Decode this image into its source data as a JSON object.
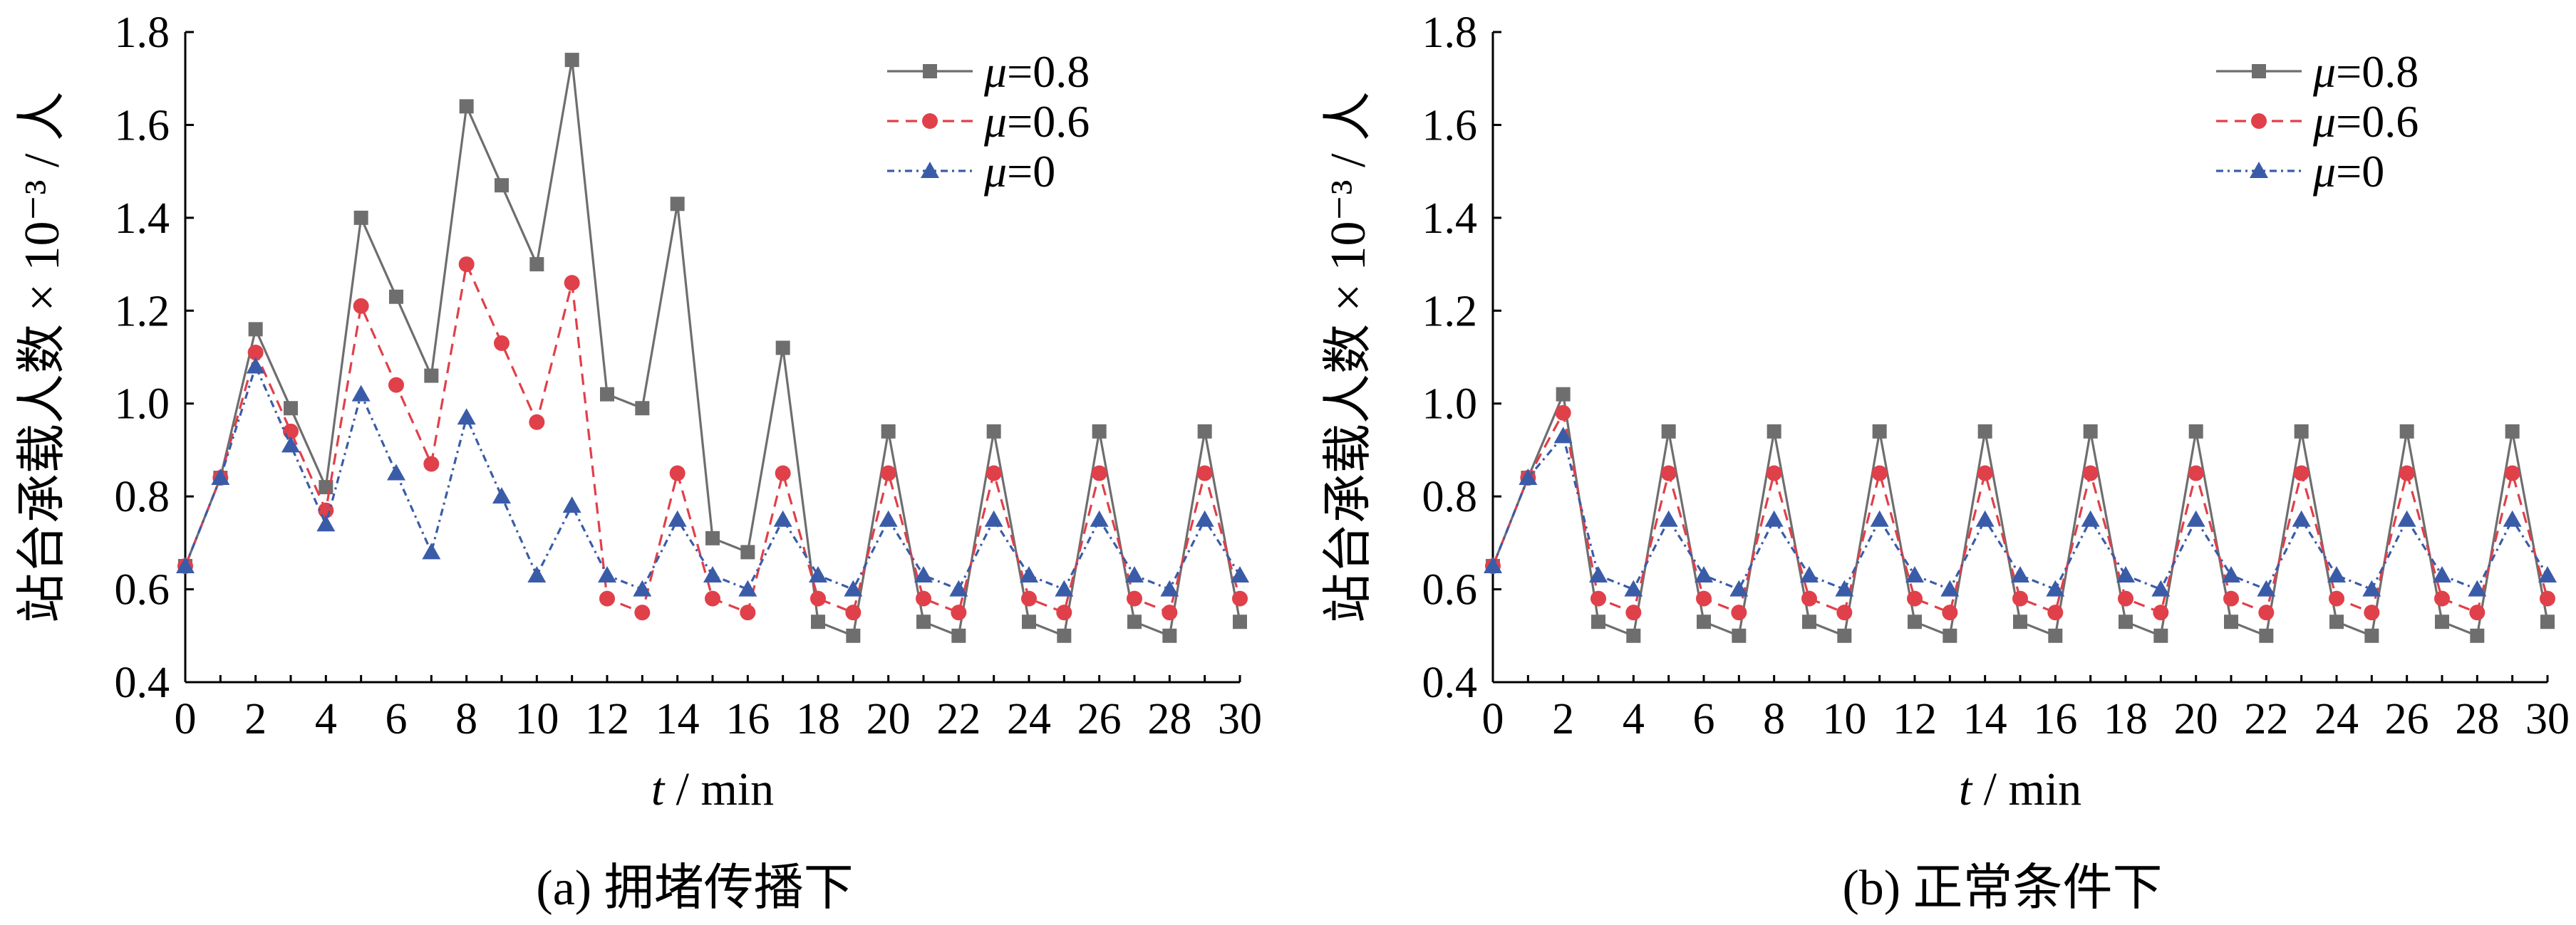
{
  "chart_data": [
    {
      "type": "line",
      "caption": "(a)  拥堵传播下",
      "xlabel_var": "t",
      "xlabel_unit": " / min",
      "ylabel": "站台承载人数 × 10⁻³ / 人",
      "xlim": [
        0,
        30
      ],
      "ylim": [
        0.4,
        1.8
      ],
      "x_ticks": [
        0,
        2,
        4,
        6,
        8,
        10,
        12,
        14,
        16,
        18,
        20,
        22,
        24,
        26,
        28,
        30
      ],
      "y_ticks": [
        "0.4",
        "0.6",
        "0.8",
        "1.0",
        "1.2",
        "1.4",
        "1.6",
        "1.8"
      ],
      "legend_position": "top-right",
      "grid": false,
      "x": [
        0,
        1,
        2,
        3,
        4,
        5,
        6,
        7,
        8,
        9,
        10,
        11,
        12,
        13,
        14,
        15,
        16,
        17,
        18,
        19,
        20,
        21,
        22,
        23,
        24,
        25,
        26,
        27,
        28,
        29,
        30
      ],
      "series": [
        {
          "name_var": "μ",
          "name_val": "=0.8",
          "color": "#6e6e6e",
          "marker": "square",
          "dash": "solid",
          "values": [
            0.65,
            0.84,
            1.16,
            0.99,
            0.82,
            1.4,
            1.23,
            1.06,
            1.64,
            1.47,
            1.3,
            1.74,
            1.02,
            0.99,
            1.43,
            0.71,
            0.68,
            1.12,
            0.53,
            0.5,
            0.94,
            0.53,
            0.5,
            0.94,
            0.53,
            0.5,
            0.94,
            0.53,
            0.5,
            0.94,
            0.53
          ]
        },
        {
          "name_var": "μ",
          "name_val": "=0.6",
          "color": "#e0404a",
          "marker": "circle",
          "dash": "dashed",
          "values": [
            0.65,
            0.84,
            1.11,
            0.94,
            0.77,
            1.21,
            1.04,
            0.87,
            1.3,
            1.13,
            0.96,
            1.26,
            0.58,
            0.55,
            0.85,
            0.58,
            0.55,
            0.85,
            0.58,
            0.55,
            0.85,
            0.58,
            0.55,
            0.85,
            0.58,
            0.55,
            0.85,
            0.58,
            0.55,
            0.85,
            0.58
          ]
        },
        {
          "name_var": "μ",
          "name_val": "=0",
          "color": "#3a5ca8",
          "marker": "triangle",
          "dash": "dashdot",
          "values": [
            0.65,
            0.84,
            1.08,
            0.91,
            0.74,
            1.02,
            0.85,
            0.68,
            0.97,
            0.8,
            0.63,
            0.78,
            0.63,
            0.6,
            0.75,
            0.63,
            0.6,
            0.75,
            0.63,
            0.6,
            0.75,
            0.63,
            0.6,
            0.75,
            0.63,
            0.6,
            0.75,
            0.63,
            0.6,
            0.75,
            0.63
          ]
        }
      ]
    },
    {
      "type": "line",
      "caption": "(b)  正常条件下",
      "xlabel_var": "t",
      "xlabel_unit": " / min",
      "ylabel": "站台承载人数 × 10⁻³ / 人",
      "xlim": [
        0,
        30
      ],
      "ylim": [
        0.4,
        1.8
      ],
      "x_ticks": [
        0,
        2,
        4,
        6,
        8,
        10,
        12,
        14,
        16,
        18,
        20,
        22,
        24,
        26,
        28,
        30
      ],
      "y_ticks": [
        "0.4",
        "0.6",
        "0.8",
        "1.0",
        "1.2",
        "1.4",
        "1.6",
        "1.8"
      ],
      "legend_position": "top-right",
      "grid": false,
      "x": [
        0,
        1,
        2,
        3,
        4,
        5,
        6,
        7,
        8,
        9,
        10,
        11,
        12,
        13,
        14,
        15,
        16,
        17,
        18,
        19,
        20,
        21,
        22,
        23,
        24,
        25,
        26,
        27,
        28,
        29,
        30
      ],
      "series": [
        {
          "name_var": "μ",
          "name_val": "=0.8",
          "color": "#6e6e6e",
          "marker": "square",
          "dash": "solid",
          "values": [
            0.65,
            0.84,
            1.02,
            0.53,
            0.5,
            0.94,
            0.53,
            0.5,
            0.94,
            0.53,
            0.5,
            0.94,
            0.53,
            0.5,
            0.94,
            0.53,
            0.5,
            0.94,
            0.53,
            0.5,
            0.94,
            0.53,
            0.5,
            0.94,
            0.53,
            0.5,
            0.94,
            0.53,
            0.5,
            0.94,
            0.53
          ]
        },
        {
          "name_var": "μ",
          "name_val": "=0.6",
          "color": "#e0404a",
          "marker": "circle",
          "dash": "dashed",
          "values": [
            0.65,
            0.84,
            0.98,
            0.58,
            0.55,
            0.85,
            0.58,
            0.55,
            0.85,
            0.58,
            0.55,
            0.85,
            0.58,
            0.55,
            0.85,
            0.58,
            0.55,
            0.85,
            0.58,
            0.55,
            0.85,
            0.58,
            0.55,
            0.85,
            0.58,
            0.55,
            0.85,
            0.58,
            0.55,
            0.85,
            0.58
          ]
        },
        {
          "name_var": "μ",
          "name_val": "=0",
          "color": "#3a5ca8",
          "marker": "triangle",
          "dash": "dashdot",
          "values": [
            0.65,
            0.84,
            0.93,
            0.63,
            0.6,
            0.75,
            0.63,
            0.6,
            0.75,
            0.63,
            0.6,
            0.75,
            0.63,
            0.6,
            0.75,
            0.63,
            0.6,
            0.75,
            0.63,
            0.6,
            0.75,
            0.63,
            0.6,
            0.75,
            0.63,
            0.6,
            0.75,
            0.63,
            0.6,
            0.75,
            0.63
          ]
        }
      ]
    }
  ]
}
